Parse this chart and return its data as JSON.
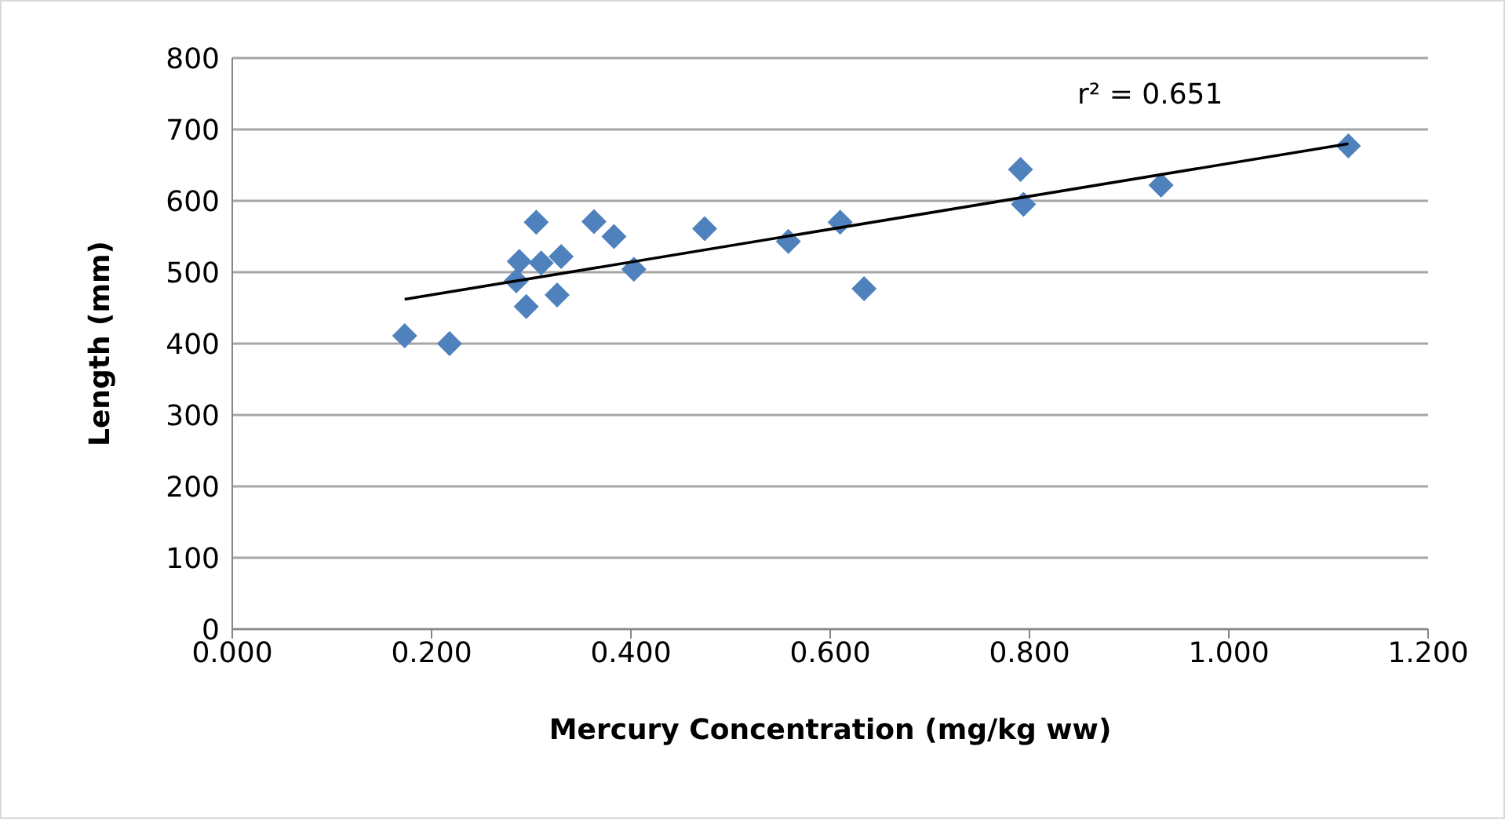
{
  "chart_data": {
    "type": "scatter",
    "xlabel": "Mercury Concentration (mg/kg ww)",
    "ylabel": "Length (mm)",
    "xlim": [
      0,
      1.2
    ],
    "xticks": [
      {
        "value": 0,
        "label": "0.000"
      },
      {
        "value": 0.2,
        "label": "0.200"
      },
      {
        "value": 0.4,
        "label": "0.400"
      },
      {
        "value": 0.6,
        "label": "0.600"
      },
      {
        "value": 0.8,
        "label": "0.800"
      },
      {
        "value": 1.0,
        "label": "1.000"
      },
      {
        "value": 1.2,
        "label": "1.200"
      }
    ],
    "ylim": [
      0,
      800
    ],
    "yticks": [
      0,
      100,
      200,
      300,
      400,
      500,
      600,
      700,
      800
    ],
    "grid": "y",
    "marker": "diamond",
    "annotations": [
      "r² = 0.651"
    ],
    "series": [
      {
        "color": "#4f81bd",
        "x": [
          0.173,
          0.218,
          0.285,
          0.288,
          0.295,
          0.305,
          0.31,
          0.326,
          0.33,
          0.363,
          0.383,
          0.403,
          0.474,
          0.558,
          0.61,
          0.634,
          0.791,
          0.794,
          0.932,
          1.12
        ],
        "values": [
          411,
          400,
          488,
          515,
          452,
          570,
          513,
          468,
          522,
          571,
          550,
          504,
          561,
          543,
          570,
          477,
          644,
          595,
          622,
          677
        ]
      },
      {
        "type": "line",
        "marker": "none",
        "color": "#000000",
        "x": [
          0.173,
          1.12
        ],
        "values": [
          462,
          680
        ]
      }
    ]
  }
}
